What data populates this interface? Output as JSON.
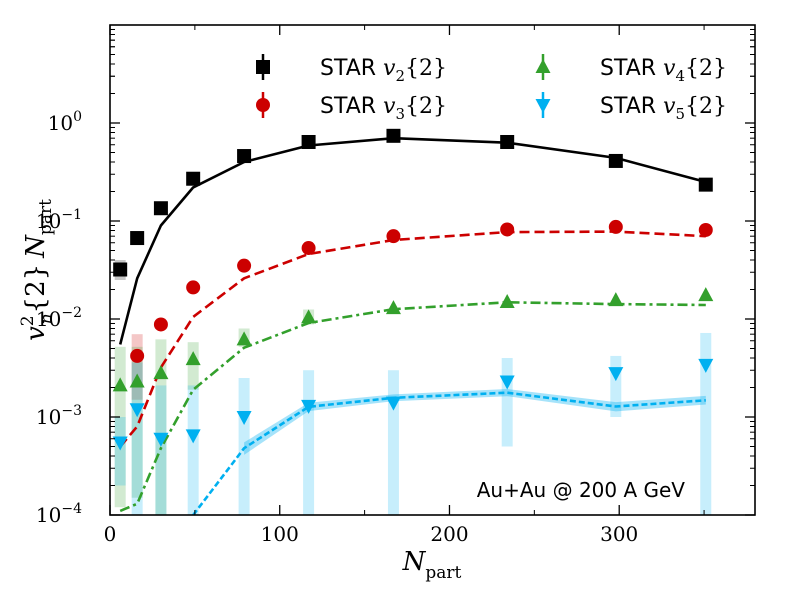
{
  "chart_data": {
    "type": "scatter",
    "yscale": "log",
    "title": "",
    "xlabel_main": "N",
    "xlabel_sub": "part",
    "ylabel": {
      "v": "v",
      "n": "n",
      "sup": "2",
      "braces": "{2}",
      "N": "N",
      "sub": "part"
    },
    "xlim": [
      0,
      380
    ],
    "ylim": [
      0.0001,
      10
    ],
    "x_ticks": [
      {
        "value": 0,
        "label": "0"
      },
      {
        "value": 100,
        "label": "100"
      },
      {
        "value": 200,
        "label": "200"
      },
      {
        "value": 300,
        "label": "300"
      }
    ],
    "y_ticks": [
      {
        "value": 0.0001,
        "mant": "10",
        "exp": "−4"
      },
      {
        "value": 0.001,
        "mant": "10",
        "exp": "−3"
      },
      {
        "value": 0.01,
        "mant": "10",
        "exp": "−2"
      },
      {
        "value": 0.1,
        "mant": "10",
        "exp": "−1"
      },
      {
        "value": 1,
        "mant": "10",
        "exp": "0"
      }
    ],
    "annotation": "Au+Au @ 200 A GeV",
    "series": [
      {
        "name": "STAR v2{2}",
        "legend_prefix": "STAR ",
        "legend_v": "v",
        "legend_sub": "2",
        "legend_suffix": "{2}",
        "color": "#000000",
        "marker": "square",
        "line_style": "solid",
        "points": [
          [
            6,
            0.032
          ],
          [
            16,
            0.067
          ],
          [
            30,
            0.135
          ],
          [
            49,
            0.27
          ],
          [
            79,
            0.46
          ],
          [
            117,
            0.64
          ],
          [
            167,
            0.74
          ],
          [
            234,
            0.64
          ],
          [
            298,
            0.41
          ],
          [
            351,
            0.235
          ]
        ],
        "syst": [
          [
            6,
            0.025,
            0.04
          ]
        ],
        "theory": [
          [
            6,
            0.0055
          ],
          [
            16,
            0.026
          ],
          [
            30,
            0.09
          ],
          [
            49,
            0.22
          ],
          [
            79,
            0.4
          ],
          [
            117,
            0.59
          ],
          [
            167,
            0.7
          ],
          [
            234,
            0.63
          ],
          [
            298,
            0.44
          ],
          [
            351,
            0.25
          ]
        ]
      },
      {
        "name": "STAR v3{2}",
        "legend_prefix": "STAR ",
        "legend_v": "v",
        "legend_sub": "3",
        "legend_suffix": "{2}",
        "color": "#cc0000",
        "marker": "circle",
        "line_style": "dashed",
        "points": [
          [
            16,
            0.0042
          ],
          [
            30,
            0.0088
          ],
          [
            49,
            0.021
          ],
          [
            79,
            0.035
          ],
          [
            117,
            0.053
          ],
          [
            167,
            0.07
          ],
          [
            234,
            0.082
          ],
          [
            298,
            0.087
          ],
          [
            351,
            0.081
          ]
        ],
        "syst": [
          [
            16,
            0.0015,
            0.007
          ]
        ],
        "theory": [
          [
            6,
            0.0005
          ],
          [
            16,
            0.0008
          ],
          [
            30,
            0.0032
          ],
          [
            49,
            0.0105
          ],
          [
            79,
            0.026
          ],
          [
            117,
            0.046
          ],
          [
            167,
            0.064
          ],
          [
            234,
            0.077
          ],
          [
            298,
            0.078
          ],
          [
            351,
            0.07
          ]
        ]
      },
      {
        "name": "STAR v4{2}",
        "legend_prefix": "STAR ",
        "legend_v": "v",
        "legend_sub": "4",
        "legend_suffix": "{2}",
        "color": "#33a02c",
        "marker": "triangle-up",
        "line_style": "dashdot",
        "points": [
          [
            6,
            0.0021
          ],
          [
            16,
            0.0023
          ],
          [
            30,
            0.0028
          ],
          [
            49,
            0.0039
          ],
          [
            79,
            0.0062
          ],
          [
            117,
            0.0104
          ],
          [
            167,
            0.0129
          ],
          [
            234,
            0.0149
          ],
          [
            298,
            0.0156
          ],
          [
            351,
            0.0175
          ]
        ],
        "syst": [
          [
            6,
            0.00012,
            0.0052
          ],
          [
            16,
            0.00015,
            0.0052
          ],
          [
            30,
            0.0001,
            0.0062
          ],
          [
            49,
            0.0019,
            0.0058
          ],
          [
            79,
            0.0052,
            0.008
          ],
          [
            117,
            0.0088,
            0.0125
          ]
        ],
        "theory": [
          [
            6,
            0.00011
          ],
          [
            16,
            0.00013
          ],
          [
            30,
            0.00048
          ],
          [
            49,
            0.0019
          ],
          [
            79,
            0.0051
          ],
          [
            117,
            0.0091
          ],
          [
            167,
            0.0126
          ],
          [
            234,
            0.0148
          ],
          [
            298,
            0.0142
          ],
          [
            351,
            0.0139
          ]
        ]
      },
      {
        "name": "STAR v5{2}",
        "legend_prefix": "STAR ",
        "legend_v": "v",
        "legend_sub": "5",
        "legend_suffix": "{2}",
        "color": "#00b0f0",
        "marker": "triangle-down",
        "line_style": "dotted",
        "points": [
          [
            6,
            0.00055
          ],
          [
            16,
            0.0012
          ],
          [
            30,
            0.0006
          ],
          [
            49,
            0.00065
          ],
          [
            79,
            0.001
          ],
          [
            117,
            0.0013
          ],
          [
            167,
            0.0014
          ],
          [
            234,
            0.0023
          ],
          [
            298,
            0.0028
          ],
          [
            351,
            0.0034
          ]
        ],
        "syst": [
          [
            6,
            0.0002,
            0.001
          ],
          [
            16,
            0.0001,
            0.0036
          ],
          [
            30,
            0.0001,
            0.0021
          ],
          [
            49,
            0.0001,
            0.0021
          ],
          [
            79,
            0.0001,
            0.0025
          ],
          [
            117,
            0.0001,
            0.003
          ],
          [
            167,
            0.0001,
            0.003
          ],
          [
            234,
            0.0005,
            0.004
          ],
          [
            298,
            0.001,
            0.0042
          ],
          [
            351,
            0.0001,
            0.0072
          ]
        ],
        "theory": [
          [
            49,
            9e-05
          ],
          [
            79,
            0.00048
          ],
          [
            117,
            0.00127
          ],
          [
            167,
            0.00157
          ],
          [
            234,
            0.00177
          ],
          [
            298,
            0.00128
          ],
          [
            351,
            0.00148
          ]
        ],
        "theory_band": [
          [
            79,
            0.00041,
            0.00055
          ],
          [
            117,
            0.00115,
            0.0014
          ],
          [
            167,
            0.00145,
            0.0017
          ],
          [
            234,
            0.00163,
            0.00193
          ],
          [
            298,
            0.00114,
            0.00142
          ],
          [
            351,
            0.00134,
            0.00164
          ]
        ]
      }
    ],
    "legend_position": "top"
  }
}
